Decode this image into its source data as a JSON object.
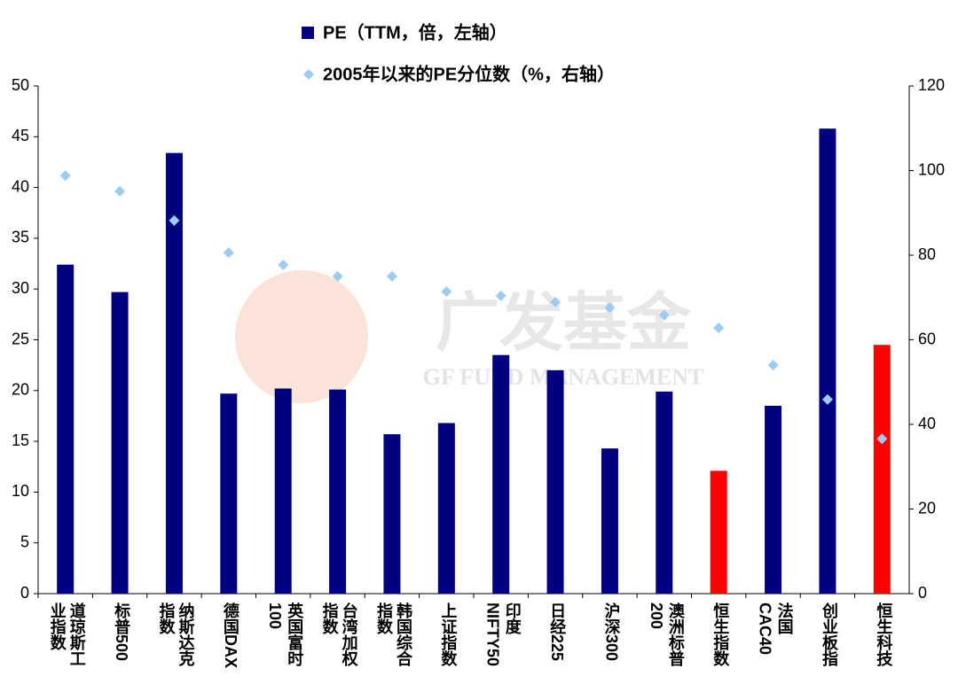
{
  "chart_data": {
    "type": "bar",
    "categories": [
      "道琼斯工业指数",
      "标普500",
      "纳斯达克指数",
      "德国DAX",
      "英国富时100",
      "台湾加权指数",
      "韩国综合指数",
      "上证指数",
      "印度NIFTY50",
      "日经225",
      "沪深300",
      "澳洲标普200",
      "恒生指数",
      "法国CAC40",
      "创业板指",
      "恒生科技"
    ],
    "series": [
      {
        "name": "PE（TTM，倍，左轴）",
        "color": "#000080",
        "colors": [
          "#000080",
          "#000080",
          "#000080",
          "#000080",
          "#000080",
          "#000080",
          "#000080",
          "#000080",
          "#000080",
          "#000080",
          "#000080",
          "#000080",
          "#ff0000",
          "#000080",
          "#000080",
          "#ff0000"
        ],
        "values": [
          32.4,
          29.7,
          43.4,
          19.7,
          20.2,
          20.1,
          15.7,
          16.8,
          23.5,
          22.0,
          14.3,
          19.9,
          12.1,
          18.5,
          45.8,
          24.5
        ]
      },
      {
        "name": "2005年以来的PE分位数（%，右轴）",
        "type": "scatter",
        "color": "#9ecbf2",
        "axis": "y2",
        "values": [
          98.8,
          95.1,
          88.2,
          80.6,
          77.7,
          75.0,
          75.0,
          71.4,
          70.4,
          68.9,
          67.6,
          65.8,
          62.8,
          54.0,
          45.9,
          36.6
        ]
      }
    ],
    "ylim": [
      0,
      50
    ],
    "yticks": [
      0,
      5,
      10,
      15,
      20,
      25,
      30,
      35,
      40,
      45,
      50
    ],
    "y2lim": [
      0,
      120
    ],
    "y2ticks": [
      0,
      20,
      40,
      60,
      80,
      100,
      120
    ],
    "grid": false
  },
  "watermark": {
    "brand": "广发基金",
    "brand_en": "GF FUND MANAGEMENT"
  }
}
